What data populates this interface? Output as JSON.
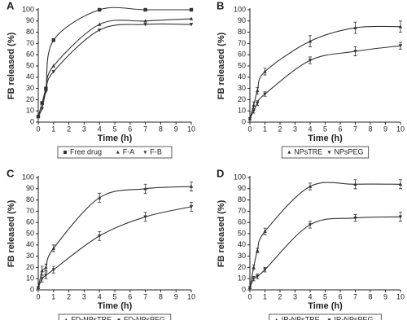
{
  "chart_data": [
    {
      "type": "line",
      "label": "A",
      "xlabel": "Time (h)",
      "ylabel": "FB released (%)",
      "x": [
        0,
        0.25,
        0.5,
        1,
        4,
        7,
        10
      ],
      "xlim": [
        0,
        10
      ],
      "xticks": [
        0,
        1,
        2,
        3,
        4,
        5,
        6,
        7,
        8,
        9,
        10
      ],
      "ylim": [
        0,
        100
      ],
      "yticks": [
        0,
        10,
        20,
        30,
        40,
        50,
        60,
        70,
        80,
        90,
        100
      ],
      "series": [
        {
          "name": "Free drug",
          "marker": "square",
          "color": "#333333",
          "values": [
            5,
            17,
            30,
            73,
            100,
            100,
            100
          ]
        },
        {
          "name": "F-A",
          "marker": "triangle-up",
          "color": "#333333",
          "values": [
            5,
            17,
            30,
            50,
            87,
            90,
            92
          ]
        },
        {
          "name": "F-B",
          "marker": "triangle-down",
          "color": "#333333",
          "values": [
            5,
            12,
            27,
            45,
            82,
            87,
            87
          ]
        }
      ]
    },
    {
      "type": "line",
      "label": "B",
      "xlabel": "Time (h)",
      "ylabel": "FB released (%)",
      "x": [
        0,
        0.25,
        0.5,
        1,
        4,
        7,
        10
      ],
      "xlim": [
        0,
        10
      ],
      "xticks": [
        0,
        1,
        2,
        3,
        4,
        5,
        6,
        7,
        8,
        9,
        10
      ],
      "ylim": [
        0,
        100
      ],
      "yticks": [
        0,
        10,
        20,
        30,
        40,
        50,
        60,
        70,
        80,
        90,
        100
      ],
      "series": [
        {
          "name": "NPsTRE",
          "marker": "triangle-up",
          "color": "#333333",
          "values": [
            3,
            15,
            28,
            45,
            72,
            84,
            85
          ],
          "errors": [
            1,
            3,
            3,
            3,
            5,
            5,
            5
          ]
        },
        {
          "name": "NPsPEG",
          "marker": "triangle-down",
          "color": "#333333",
          "values": [
            3,
            10,
            17,
            25,
            55,
            63,
            68
          ],
          "errors": [
            1,
            2,
            2,
            2,
            3,
            4,
            3
          ]
        }
      ]
    },
    {
      "type": "line",
      "label": "C",
      "xlabel": "Time (h)",
      "ylabel": "FB released (%)",
      "x": [
        0,
        0.25,
        0.5,
        1,
        4,
        7,
        10
      ],
      "xlim": [
        0,
        10
      ],
      "xticks": [
        0,
        1,
        2,
        3,
        4,
        5,
        6,
        7,
        8,
        9,
        10
      ],
      "ylim": [
        0,
        100
      ],
      "yticks": [
        0,
        10,
        20,
        30,
        40,
        50,
        60,
        70,
        80,
        90,
        100
      ],
      "series": [
        {
          "name": "FD-NPsTRE",
          "marker": "triangle-up",
          "color": "#333333",
          "values": [
            2,
            17,
            20,
            37,
            82,
            90,
            92
          ],
          "errors": [
            1,
            4,
            3,
            3,
            4,
            4,
            4
          ]
        },
        {
          "name": "FD-NPsPEG",
          "marker": "triangle-down",
          "color": "#333333",
          "values": [
            2,
            10,
            13,
            18,
            48,
            65,
            74
          ],
          "errors": [
            1,
            3,
            3,
            3,
            4,
            4,
            4
          ]
        }
      ]
    },
    {
      "type": "line",
      "label": "D",
      "xlabel": "Time (h)",
      "ylabel": "FB released (%)",
      "x": [
        0,
        0.25,
        0.5,
        1,
        4,
        7,
        10
      ],
      "xlim": [
        0,
        10
      ],
      "xticks": [
        0,
        1,
        2,
        3,
        4,
        5,
        6,
        7,
        8,
        9,
        10
      ],
      "ylim": [
        0,
        100
      ],
      "yticks": [
        0,
        10,
        20,
        30,
        40,
        50,
        60,
        70,
        80,
        90,
        100
      ],
      "series": [
        {
          "name": "IR-NPsTRE",
          "marker": "triangle-up",
          "color": "#333333",
          "values": [
            2,
            20,
            35,
            52,
            92,
            94,
            94
          ],
          "errors": [
            1,
            2,
            2,
            3,
            3,
            4,
            4
          ]
        },
        {
          "name": "IR-NPsPEG",
          "marker": "triangle-down",
          "color": "#333333",
          "values": [
            2,
            10,
            12,
            18,
            58,
            64,
            65
          ],
          "errors": [
            1,
            2,
            2,
            2,
            3,
            3,
            4
          ]
        }
      ]
    }
  ]
}
